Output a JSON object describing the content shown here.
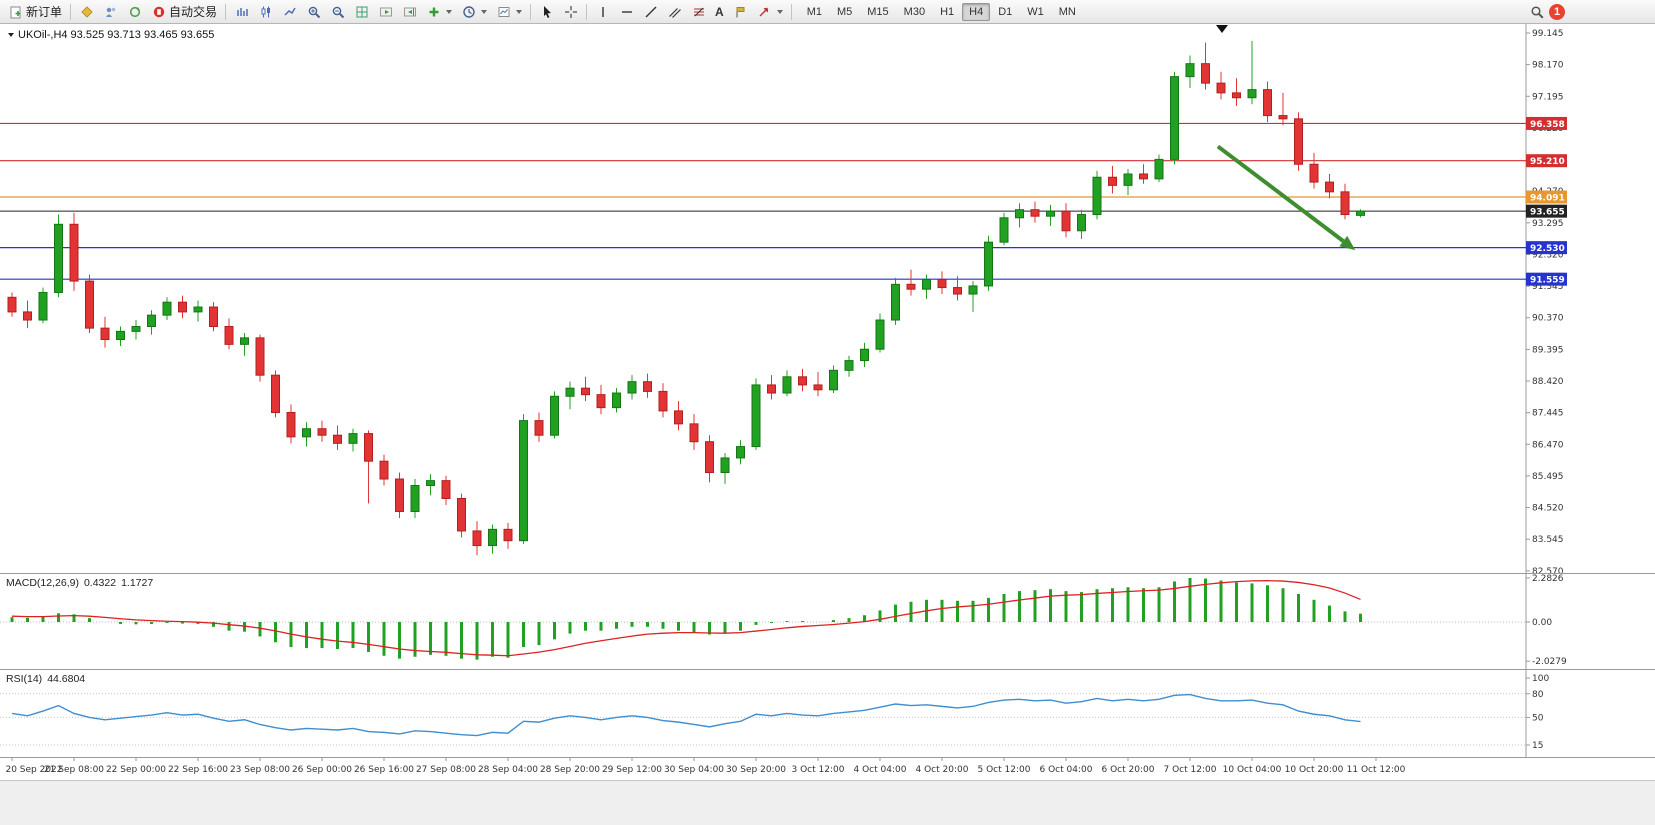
{
  "toolbar": {
    "new_order": "新订单",
    "autotrade": "自动交易",
    "text_tool_label": "A",
    "timeframes": [
      "M1",
      "M5",
      "M15",
      "M30",
      "H1",
      "H4",
      "D1",
      "W1",
      "MN"
    ],
    "active_timeframe": "H4",
    "notification_count": "1",
    "icon_names": [
      "new-order-icon",
      "diamond-icon",
      "users-icon",
      "refresh-icon",
      "autotrading-icon",
      "bar-chart-icon",
      "candlestick-icon",
      "line-chart-icon",
      "zoom-in-icon",
      "zoom-out-icon",
      "tile-windows-icon",
      "auto-scroll-icon",
      "chart-shift-icon",
      "indicators-plus-icon",
      "periods-clock-icon",
      "templates-icon",
      "cursor-icon",
      "crosshair-icon",
      "vertical-line-icon",
      "horizontal-line-icon",
      "trendline-icon",
      "channel-icon",
      "fibonacci-icon",
      "text-icon",
      "label-flag-icon",
      "arrows-icon",
      "search-icon",
      "chevron-down-icon"
    ]
  },
  "chart": {
    "symbol_header": "UKOil-,H4 93.525 93.713 93.465 93.655",
    "macd_label": "MACD(12,26,9)",
    "macd_value_1": "0.4322",
    "macd_value_2": "1.1727",
    "rsi_label": "RSI(14)",
    "rsi_value": "44.6804"
  },
  "chart_data": {
    "type": "candlestick",
    "title": "UKOil-,H4",
    "symbol": "UKOil-",
    "timeframe": "H4",
    "ohlc_display": {
      "open": "93.525",
      "high": "93.713",
      "low": "93.465",
      "close": "93.655"
    },
    "colors": {
      "bull": "#21a121",
      "bull_stroke": "#157515",
      "bear": "#e23434",
      "bear_stroke": "#b02020",
      "background": "#ffffff",
      "axis_text": "#333333"
    },
    "y_axis": {
      "max": 99.145,
      "min": 82.57,
      "ticks": [
        "99.145",
        "98.170",
        "97.195",
        "96.220",
        "95.245",
        "94.270",
        "93.295",
        "92.320",
        "91.345",
        "90.370",
        "89.395",
        "88.420",
        "87.445",
        "86.470",
        "85.495",
        "84.520",
        "83.545",
        "82.570"
      ]
    },
    "x_axis": {
      "labels": [
        "20 Sep 2022",
        "21 Sep 08:00",
        "22 Sep 00:00",
        "22 Sep 16:00",
        "23 Sep 08:00",
        "26 Sep 00:00",
        "26 Sep 16:00",
        "27 Sep 08:00",
        "28 Sep 04:00",
        "28 Sep 20:00",
        "29 Sep 12:00",
        "30 Sep 04:00",
        "30 Sep 20:00",
        "3 Oct 12:00",
        "4 Oct 04:00",
        "4 Oct 20:00",
        "5 Oct 12:00",
        "6 Oct 04:00",
        "6 Oct 20:00",
        "7 Oct 12:00",
        "10 Oct 04:00",
        "10 Oct 20:00",
        "11 Oct 12:00"
      ]
    },
    "hlines": [
      {
        "price": 96.358,
        "label": "96.358",
        "color": "#d32f2f"
      },
      {
        "price": 95.21,
        "label": "95.210",
        "color": "#d32f2f"
      },
      {
        "price": 94.091,
        "label": "94.091",
        "color": "#e8962e"
      },
      {
        "price": 92.53,
        "label": "92.530",
        "color": "#2633cc"
      },
      {
        "price": 91.559,
        "label": "91.559",
        "color": "#2633cc"
      }
    ],
    "current_price": {
      "value": 93.655,
      "label": "93.655",
      "color": "#222222"
    },
    "annotation_arrow": {
      "x1_index": 77.8,
      "y1_price": 95.65,
      "x2_index": 86.2,
      "y2_price": 92.62,
      "color": "#3e8e2f"
    },
    "candles": [
      [
        91.0,
        91.15,
        90.4,
        90.55
      ],
      [
        90.55,
        90.9,
        90.05,
        90.3
      ],
      [
        90.3,
        91.3,
        90.2,
        91.15
      ],
      [
        91.15,
        93.55,
        91.0,
        93.25
      ],
      [
        93.25,
        93.6,
        91.2,
        91.5
      ],
      [
        91.5,
        91.7,
        89.9,
        90.05
      ],
      [
        90.05,
        90.4,
        89.45,
        89.7
      ],
      [
        89.7,
        90.1,
        89.5,
        89.95
      ],
      [
        89.95,
        90.3,
        89.7,
        90.1
      ],
      [
        90.1,
        90.6,
        89.85,
        90.45
      ],
      [
        90.45,
        91.0,
        90.3,
        90.85
      ],
      [
        90.85,
        91.05,
        90.35,
        90.55
      ],
      [
        90.55,
        90.9,
        90.25,
        90.7
      ],
      [
        90.7,
        90.85,
        89.95,
        90.1
      ],
      [
        90.1,
        90.35,
        89.4,
        89.55
      ],
      [
        89.55,
        89.9,
        89.2,
        89.75
      ],
      [
        89.75,
        89.85,
        88.4,
        88.6
      ],
      [
        88.6,
        88.75,
        87.3,
        87.45
      ],
      [
        87.45,
        87.7,
        86.5,
        86.7
      ],
      [
        86.7,
        87.15,
        86.4,
        86.95
      ],
      [
        86.95,
        87.2,
        86.55,
        86.75
      ],
      [
        86.75,
        87.05,
        86.3,
        86.5
      ],
      [
        86.5,
        86.95,
        86.25,
        86.8
      ],
      [
        86.8,
        86.9,
        84.65,
        85.95
      ],
      [
        85.95,
        86.15,
        85.2,
        85.4
      ],
      [
        85.4,
        85.6,
        84.2,
        84.4
      ],
      [
        84.4,
        85.4,
        84.2,
        85.2
      ],
      [
        85.2,
        85.55,
        84.9,
        85.35
      ],
      [
        85.35,
        85.5,
        84.6,
        84.8
      ],
      [
        84.8,
        84.95,
        83.6,
        83.8
      ],
      [
        83.8,
        84.1,
        83.05,
        83.35
      ],
      [
        83.35,
        84.0,
        83.1,
        83.85
      ],
      [
        83.85,
        84.05,
        83.25,
        83.5
      ],
      [
        83.5,
        87.4,
        83.4,
        87.2
      ],
      [
        87.2,
        87.45,
        86.55,
        86.75
      ],
      [
        86.75,
        88.1,
        86.65,
        87.95
      ],
      [
        87.95,
        88.4,
        87.55,
        88.2
      ],
      [
        88.2,
        88.55,
        87.8,
        88.0
      ],
      [
        88.0,
        88.3,
        87.4,
        87.6
      ],
      [
        87.6,
        88.2,
        87.45,
        88.05
      ],
      [
        88.05,
        88.6,
        87.85,
        88.4
      ],
      [
        88.4,
        88.65,
        87.9,
        88.1
      ],
      [
        88.1,
        88.35,
        87.3,
        87.5
      ],
      [
        87.5,
        87.8,
        86.9,
        87.1
      ],
      [
        87.1,
        87.4,
        86.3,
        86.55
      ],
      [
        86.55,
        86.75,
        85.3,
        85.6
      ],
      [
        85.6,
        86.2,
        85.25,
        86.05
      ],
      [
        86.05,
        86.6,
        85.85,
        86.4
      ],
      [
        86.4,
        88.5,
        86.3,
        88.3
      ],
      [
        88.3,
        88.6,
        87.85,
        88.05
      ],
      [
        88.05,
        88.75,
        87.95,
        88.55
      ],
      [
        88.55,
        88.8,
        88.1,
        88.3
      ],
      [
        88.3,
        88.7,
        87.95,
        88.15
      ],
      [
        88.15,
        88.9,
        88.05,
        88.75
      ],
      [
        88.75,
        89.2,
        88.55,
        89.05
      ],
      [
        89.05,
        89.6,
        88.85,
        89.4
      ],
      [
        89.4,
        90.5,
        89.3,
        90.3
      ],
      [
        90.3,
        91.6,
        90.15,
        91.4
      ],
      [
        91.4,
        91.85,
        91.05,
        91.25
      ],
      [
        91.25,
        91.7,
        90.95,
        91.55
      ],
      [
        91.55,
        91.8,
        91.1,
        91.3
      ],
      [
        91.3,
        91.65,
        90.9,
        91.1
      ],
      [
        91.1,
        91.5,
        90.55,
        91.35
      ],
      [
        91.35,
        92.9,
        91.2,
        92.7
      ],
      [
        92.7,
        93.6,
        92.6,
        93.45
      ],
      [
        93.45,
        93.9,
        93.15,
        93.7
      ],
      [
        93.7,
        93.95,
        93.3,
        93.5
      ],
      [
        93.5,
        93.85,
        93.2,
        93.65
      ],
      [
        93.65,
        93.9,
        92.85,
        93.05
      ],
      [
        93.05,
        93.7,
        92.8,
        93.55
      ],
      [
        93.55,
        94.9,
        93.4,
        94.7
      ],
      [
        94.7,
        95.05,
        94.2,
        94.45
      ],
      [
        94.45,
        94.95,
        94.15,
        94.8
      ],
      [
        94.8,
        95.1,
        94.5,
        94.65
      ],
      [
        94.65,
        95.4,
        94.55,
        95.25
      ],
      [
        95.25,
        97.95,
        95.1,
        97.8
      ],
      [
        97.8,
        98.45,
        97.45,
        98.2
      ],
      [
        98.2,
        98.85,
        97.4,
        97.6
      ],
      [
        97.6,
        97.95,
        97.1,
        97.3
      ],
      [
        97.3,
        97.75,
        96.9,
        97.15
      ],
      [
        97.15,
        98.9,
        96.95,
        97.4
      ],
      [
        97.4,
        97.65,
        96.4,
        96.6
      ],
      [
        96.6,
        97.3,
        96.3,
        96.5
      ],
      [
        96.5,
        96.7,
        94.9,
        95.1
      ],
      [
        95.1,
        95.45,
        94.35,
        94.55
      ],
      [
        94.55,
        94.8,
        94.05,
        94.25
      ],
      [
        94.25,
        94.5,
        93.4,
        93.55
      ],
      [
        93.525,
        93.713,
        93.465,
        93.655
      ]
    ],
    "indicators": [
      {
        "name": "MACD",
        "params": "12,26,9",
        "display_values": [
          "0.4322",
          "1.1727"
        ],
        "axis_ticks": [
          "2.2826",
          "0.00",
          "-2.0279"
        ],
        "colors": {
          "histogram": "#21a121",
          "signal": "#dd2222"
        },
        "values": [
          0.25,
          0.22,
          0.28,
          0.45,
          0.4,
          0.2,
          0.0,
          -0.1,
          -0.12,
          -0.1,
          -0.05,
          -0.08,
          -0.1,
          -0.25,
          -0.45,
          -0.5,
          -0.75,
          -1.05,
          -1.3,
          -1.35,
          -1.35,
          -1.4,
          -1.35,
          -1.55,
          -1.75,
          -1.9,
          -1.8,
          -1.7,
          -1.75,
          -1.9,
          -1.95,
          -1.8,
          -1.85,
          -1.3,
          -1.2,
          -0.9,
          -0.6,
          -0.45,
          -0.45,
          -0.35,
          -0.25,
          -0.25,
          -0.35,
          -0.45,
          -0.55,
          -0.65,
          -0.6,
          -0.45,
          -0.15,
          -0.05,
          0.05,
          0.05,
          0.0,
          0.1,
          0.2,
          0.35,
          0.6,
          0.9,
          1.05,
          1.15,
          1.15,
          1.1,
          1.1,
          1.25,
          1.45,
          1.6,
          1.65,
          1.7,
          1.6,
          1.55,
          1.7,
          1.75,
          1.8,
          1.75,
          1.8,
          2.1,
          2.28,
          2.25,
          2.15,
          2.05,
          2.0,
          1.9,
          1.75,
          1.45,
          1.15,
          0.85,
          0.55,
          0.43
        ],
        "signal": [
          0.3,
          0.28,
          0.28,
          0.31,
          0.33,
          0.3,
          0.24,
          0.17,
          0.11,
          0.07,
          0.04,
          0.02,
          -0.01,
          -0.06,
          -0.14,
          -0.21,
          -0.32,
          -0.46,
          -0.63,
          -0.77,
          -0.89,
          -0.99,
          -1.06,
          -1.16,
          -1.28,
          -1.4,
          -1.48,
          -1.53,
          -1.57,
          -1.64,
          -1.7,
          -1.72,
          -1.75,
          -1.66,
          -1.56,
          -1.43,
          -1.27,
          -1.1,
          -0.97,
          -0.85,
          -0.73,
          -0.63,
          -0.58,
          -0.55,
          -0.55,
          -0.57,
          -0.58,
          -0.55,
          -0.47,
          -0.39,
          -0.3,
          -0.23,
          -0.18,
          -0.13,
          -0.06,
          0.02,
          0.14,
          0.29,
          0.44,
          0.58,
          0.7,
          0.78,
          0.84,
          0.92,
          1.03,
          1.14,
          1.24,
          1.34,
          1.39,
          1.42,
          1.48,
          1.53,
          1.58,
          1.62,
          1.65,
          1.74,
          1.85,
          1.95,
          2.03,
          2.09,
          2.13,
          2.14,
          2.12,
          2.05,
          1.93,
          1.76,
          1.5,
          1.17
        ]
      },
      {
        "name": "RSI",
        "params": "14",
        "display_value": "44.6804",
        "axis_ticks": [
          "100",
          "80",
          "50",
          "15"
        ],
        "levels": [
          80,
          50,
          15
        ],
        "color": "#3e8ed0",
        "values": [
          55,
          52,
          58,
          65,
          55,
          50,
          47,
          49,
          51,
          53,
          56,
          53,
          54,
          49,
          45,
          47,
          41,
          37,
          34,
          36,
          35,
          34,
          36,
          32,
          31,
          29,
          33,
          32,
          30,
          28,
          27,
          31,
          30,
          45,
          44,
          49,
          52,
          50,
          47,
          50,
          52,
          50,
          46,
          44,
          41,
          38,
          42,
          45,
          54,
          52,
          55,
          53,
          52,
          55,
          57,
          59,
          63,
          67,
          65,
          66,
          64,
          62,
          64,
          69,
          72,
          73,
          71,
          72,
          68,
          70,
          74,
          71,
          73,
          71,
          73,
          78,
          79,
          74,
          71,
          71,
          72,
          68,
          66,
          58,
          54,
          52,
          47,
          44.68
        ]
      }
    ]
  }
}
